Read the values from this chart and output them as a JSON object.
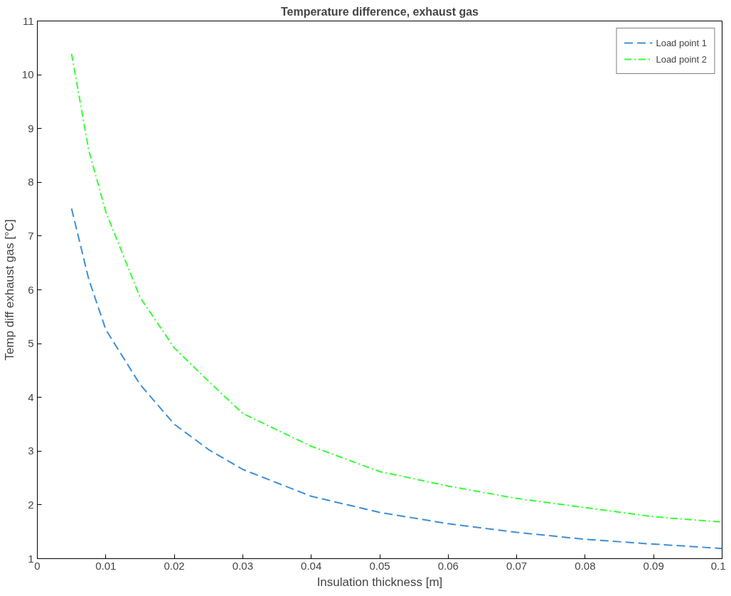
{
  "chart_data": {
    "type": "line",
    "title": "Temperature difference, exhaust gas",
    "xlabel": "Insulation thickness [m]",
    "ylabel": "Temp diff exhaust gas [°C]",
    "xlim": [
      0,
      0.1
    ],
    "ylim": [
      1,
      11
    ],
    "xticks": [
      0,
      0.01,
      0.02,
      0.03,
      0.04,
      0.05,
      0.06,
      0.07,
      0.08,
      0.09,
      0.1
    ],
    "yticks": [
      1,
      2,
      3,
      4,
      5,
      6,
      7,
      8,
      9,
      10,
      11
    ],
    "grid": false,
    "legend": "top right",
    "x": [
      0.005,
      0.0075,
      0.01,
      0.015,
      0.02,
      0.025,
      0.03,
      0.04,
      0.05,
      0.06,
      0.07,
      0.08,
      0.09,
      0.1
    ],
    "series": [
      {
        "name": "Load point 1",
        "color": "#3c8fd6",
        "line_style": "dashed",
        "values": [
          7.51,
          6.2,
          5.26,
          4.24,
          3.5,
          3.03,
          2.66,
          2.16,
          1.86,
          1.65,
          1.49,
          1.36,
          1.27,
          1.19
        ]
      },
      {
        "name": "Load point 2",
        "color": "#33ff33",
        "line_style": "dashdot",
        "values": [
          10.39,
          8.6,
          7.45,
          5.86,
          4.92,
          4.3,
          3.7,
          3.09,
          2.62,
          2.35,
          2.12,
          1.95,
          1.78,
          1.68
        ]
      }
    ]
  }
}
